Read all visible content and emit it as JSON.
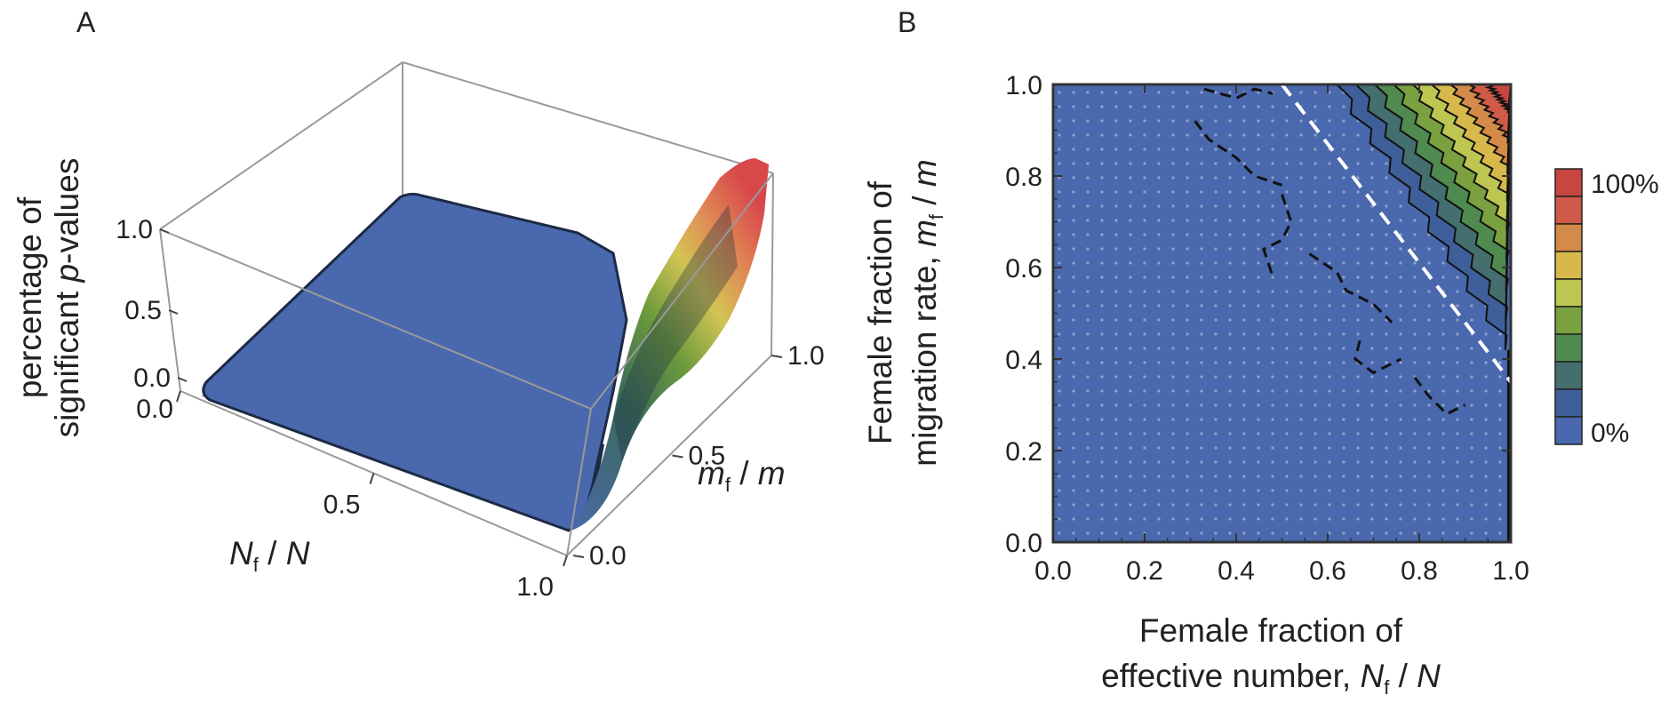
{
  "panels": {
    "a_label": "A",
    "b_label": "B"
  },
  "colors": {
    "low": "#4a68ad",
    "contour_fill_scale": [
      "#4a68ad",
      "#3f5f9a",
      "#456f6f",
      "#4f8a4f",
      "#7aa040",
      "#bcc650",
      "#d8b84a",
      "#d48a48",
      "#cf5a47",
      "#c9453f"
    ],
    "contour_line": "#111111",
    "threshold_line": "#ffffff",
    "sample_dots": "#a8b5d3",
    "box_edge": "#9a9a9a"
  },
  "chart_data": [
    {
      "type": "surface3d",
      "panel": "A",
      "z_label": "percentage of significant p-values",
      "x_label": "N_f / N",
      "y_label": "m_f / m",
      "x_ticks": [
        "0.0",
        "0.5",
        "1.0"
      ],
      "y_ticks": [
        "0.0",
        "0.5",
        "1.0"
      ],
      "z_ticks": [
        "0.0",
        "0.5",
        "1.0"
      ],
      "xlim": [
        0,
        1
      ],
      "ylim": [
        0,
        1
      ],
      "zlim": [
        0,
        1
      ],
      "surface": {
        "x": [
          0.0,
          0.25,
          0.5,
          0.6,
          0.7,
          0.8,
          0.9,
          1.0
        ],
        "y": [
          0.0,
          0.25,
          0.5,
          0.6,
          0.7,
          0.8,
          0.9,
          1.0
        ],
        "z_rows_by_y": [
          [
            0.0,
            0.0,
            0.0,
            0.0,
            0.0,
            0.0,
            0.0,
            0.02
          ],
          [
            0.0,
            0.0,
            0.0,
            0.0,
            0.0,
            0.0,
            0.0,
            0.03
          ],
          [
            0.0,
            0.0,
            0.0,
            0.0,
            0.0,
            0.0,
            0.05,
            0.12
          ],
          [
            0.0,
            0.0,
            0.0,
            0.0,
            0.0,
            0.03,
            0.15,
            0.35
          ],
          [
            0.0,
            0.0,
            0.0,
            0.0,
            0.02,
            0.12,
            0.32,
            0.55
          ],
          [
            0.0,
            0.0,
            0.0,
            0.01,
            0.08,
            0.25,
            0.5,
            0.72
          ],
          [
            0.0,
            0.0,
            0.0,
            0.05,
            0.15,
            0.38,
            0.65,
            0.85
          ],
          [
            0.0,
            0.0,
            0.02,
            0.1,
            0.22,
            0.5,
            0.78,
            0.95
          ]
        ]
      }
    },
    {
      "type": "contour",
      "panel": "B",
      "x_label_line1": "Female fraction of",
      "x_label_line2": "effective number, N_f / N",
      "y_label_line1": "Female fraction of",
      "y_label_line2": "migration rate, m_f / m",
      "x_ticks": [
        "0.0",
        "0.2",
        "0.4",
        "0.6",
        "0.8",
        "1.0"
      ],
      "y_ticks": [
        "0.0",
        "0.2",
        "0.4",
        "0.6",
        "0.8",
        "1.0"
      ],
      "xlim": [
        0,
        1
      ],
      "ylim": [
        0,
        1
      ],
      "colorbar": {
        "top_label": "100%",
        "bottom_label": "0%",
        "levels": 10
      },
      "threshold_line": {
        "x": [
          0.5,
          1.0
        ],
        "y": [
          1.0,
          0.35
        ],
        "style": "dashed"
      }
    }
  ]
}
